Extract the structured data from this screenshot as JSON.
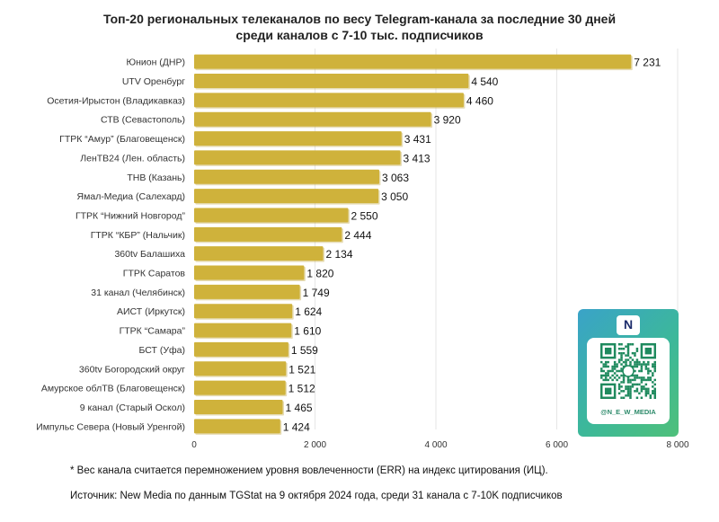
{
  "title_line1": "Топ-20 региональных телеканалов по весу Telegram-канала за последние 30 дней",
  "title_line2": "среди каналов с 7-10 тыс. подписчиков",
  "footnote": "* Вес канала считается перемножением уровня вовлеченности (ERR) на индекс цитирования (ИЦ).",
  "source": "Источник: New Media по данным TGStat на 9 октября 2024 года, среди 31 канала с 7-10K подписчиков",
  "badge": {
    "logo_letter": "N",
    "handle": "@N_E_W_MEDIA",
    "colors": [
      "#3aa3c8",
      "#4fc07a"
    ]
  },
  "chart_data": {
    "type": "bar",
    "orientation": "horizontal",
    "categories": [
      "Юнион (ДНР)",
      "UTV Оренбург",
      "Осетия-Ирыстон (Владикавказ)",
      "СТВ (Севастополь)",
      "ГТРК “Амур” (Благовещенск)",
      "ЛенТВ24 (Лен. область)",
      "ТНВ (Казань)",
      "Ямал-Медиа (Салехард)",
      "ГТРК “Нижний Новгород”",
      "ГТРК “КБР” (Нальчик)",
      "360tv Балашиха",
      "ГТРК Саратов",
      "31 канал (Челябинск)",
      "АИСТ (Иркутск)",
      "ГТРК “Самара”",
      "БСТ (Уфа)",
      "360tv Богородский округ",
      "Амурское облТВ (Благовещенск)",
      "9 канал (Старый Оскол)",
      "Импульс Севера (Новый Уренгой)"
    ],
    "values": [
      7231,
      4540,
      4460,
      3920,
      3431,
      3413,
      3063,
      3050,
      2550,
      2444,
      2134,
      1820,
      1749,
      1624,
      1610,
      1559,
      1521,
      1512,
      1465,
      1424
    ],
    "value_labels": [
      "7 231",
      "4 540",
      "4 460",
      "3 920",
      "3 431",
      "3 413",
      "3 063",
      "3 050",
      "2 550",
      "2 444",
      "2 134",
      "1 820",
      "1 749",
      "1 624",
      "1 610",
      "1 559",
      "1 521",
      "1 512",
      "1 465",
      "1 424"
    ],
    "xlim": [
      0,
      8000
    ],
    "xticks": [
      0,
      2000,
      4000,
      6000,
      8000
    ],
    "xtick_labels": [
      "0",
      "2 000",
      "4 000",
      "6 000",
      "8 000"
    ],
    "grid": true,
    "bar_color": "#cfb23b",
    "bar_shadow_color": "#b89a2a"
  }
}
